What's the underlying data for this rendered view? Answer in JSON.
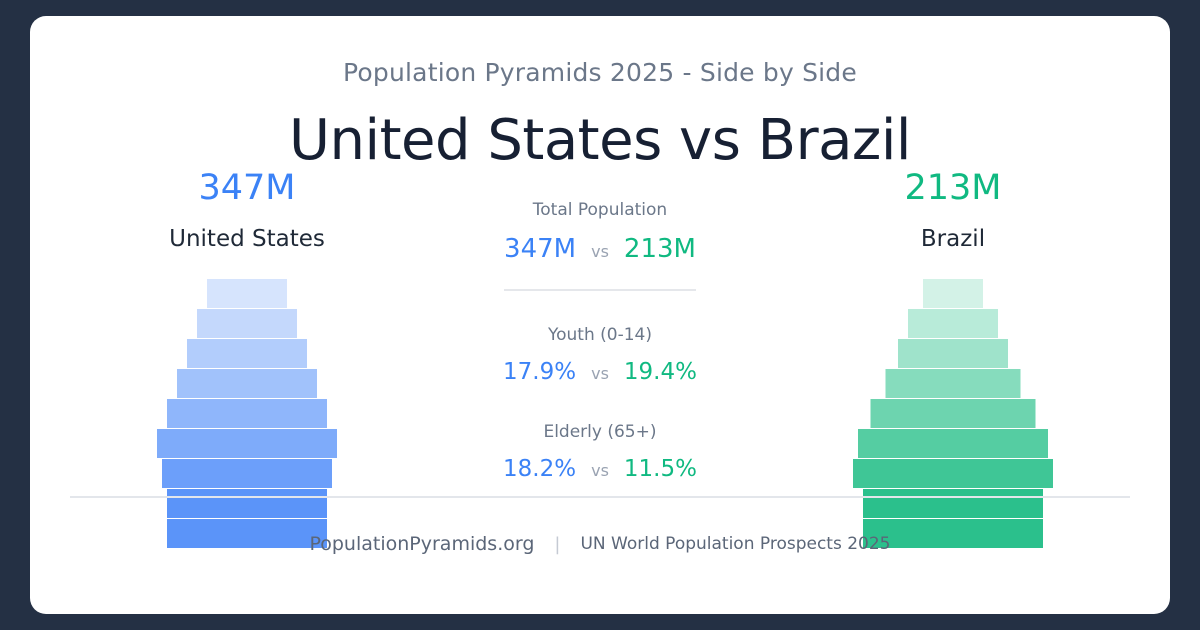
{
  "header": {
    "subtitle": "Population Pyramids 2025 - Side by Side",
    "title": "United States vs Brazil"
  },
  "left_country": {
    "name": "United States",
    "total": "347M",
    "color": "#3b82f6"
  },
  "right_country": {
    "name": "Brazil",
    "total": "213M",
    "color": "#10b981"
  },
  "comparison": {
    "total": {
      "label": "Total Population",
      "left": "347M",
      "right": "213M"
    },
    "youth": {
      "label": "Youth (0-14)",
      "left": "17.9%",
      "right": "19.4%"
    },
    "elderly": {
      "label": "Elderly (65+)",
      "left": "18.2%",
      "right": "11.5%"
    },
    "vs": "vs"
  },
  "chart_data": {
    "type": "bar",
    "series": [
      {
        "name": "United States",
        "values": [
          80,
          100,
          120,
          140,
          160,
          180,
          170,
          160,
          160
        ],
        "colors": [
          "#d6e4fd",
          "#c4d8fc",
          "#b2cdfc",
          "#a1c2fb",
          "#8fb6fb",
          "#7eabfa",
          "#6c9ffa",
          "#5b94f9",
          "#5b94f9"
        ]
      },
      {
        "name": "Brazil",
        "values": [
          60,
          90,
          110,
          135,
          165,
          190,
          200,
          180,
          180
        ],
        "colors": [
          "#d3f2e7",
          "#b8ebd9",
          "#9fe3cb",
          "#86dcbd",
          "#6dd4af",
          "#55cda2",
          "#3fc696",
          "#2bc08c",
          "#2bc08c"
        ]
      }
    ]
  },
  "footer": {
    "site": "PopulationPyramids.org",
    "separator": "|",
    "source": "UN World Population Prospects 2025"
  }
}
